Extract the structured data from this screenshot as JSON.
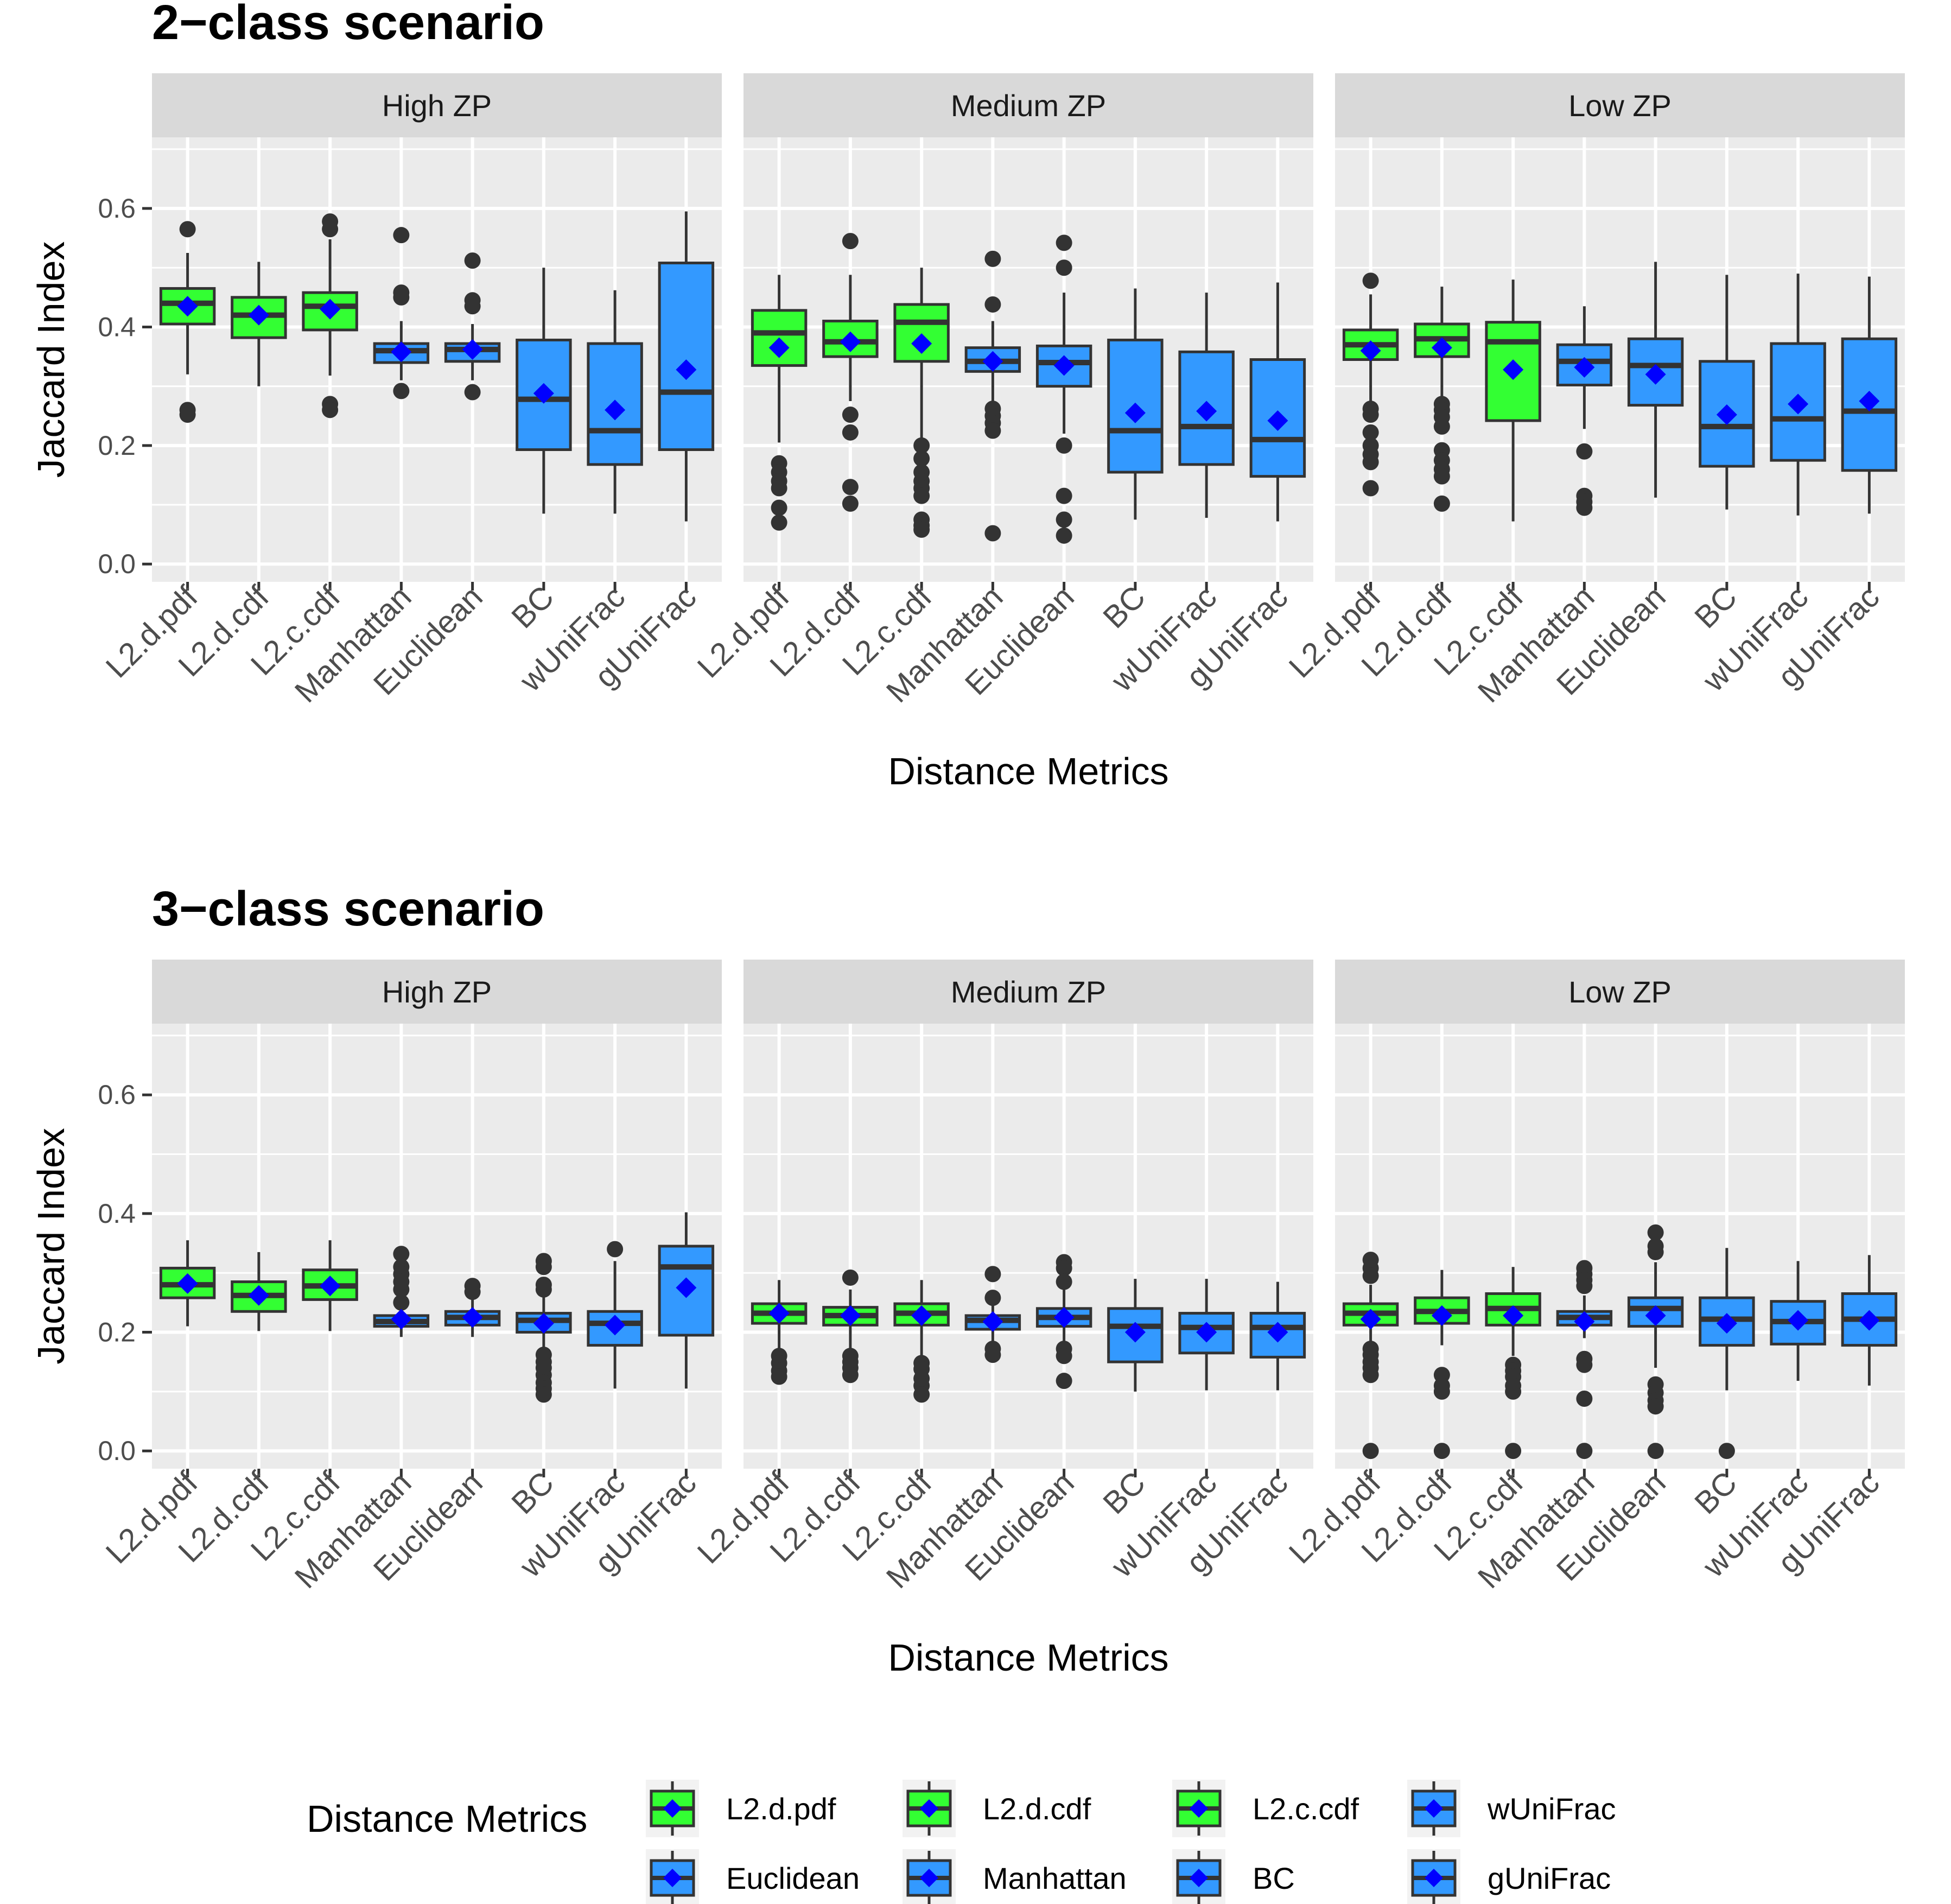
{
  "chart_data": [
    {
      "type": "boxplot",
      "title": "2−class scenario",
      "xlabel": "Distance Metrics",
      "ylabel": "Jaccard Index",
      "ylim": [
        -0.03,
        0.72
      ],
      "yticks": [
        "0.0",
        "0.2",
        "0.4",
        "0.6"
      ],
      "ytick_values": [
        0.0,
        0.2,
        0.4,
        0.6
      ],
      "categories": [
        "L2.d.pdf",
        "L2.d.cdf",
        "L2.c.cdf",
        "Manhattan",
        "Euclidean",
        "BC",
        "wUniFrac",
        "gUniFrac"
      ],
      "fill_colors": [
        "#33ff33",
        "#33ff33",
        "#33ff33",
        "#3399ff",
        "#3399ff",
        "#3399ff",
        "#3399ff",
        "#3399ff"
      ],
      "mean_marker_color": "#0000ff",
      "panels": [
        {
          "name": "High ZP",
          "boxes": [
            {
              "lo": 0.32,
              "q1": 0.405,
              "med": 0.44,
              "q3": 0.465,
              "hi": 0.525,
              "mean": 0.435,
              "out": [
                0.565,
                0.26,
                0.252
              ]
            },
            {
              "lo": 0.3,
              "q1": 0.382,
              "med": 0.42,
              "q3": 0.45,
              "hi": 0.51,
              "mean": 0.42,
              "out": []
            },
            {
              "lo": 0.318,
              "q1": 0.395,
              "med": 0.435,
              "q3": 0.458,
              "hi": 0.548,
              "mean": 0.43,
              "out": [
                0.578,
                0.565,
                0.27,
                0.26
              ]
            },
            {
              "lo": 0.31,
              "q1": 0.34,
              "med": 0.36,
              "q3": 0.372,
              "hi": 0.41,
              "mean": 0.358,
              "out": [
                0.555,
                0.458,
                0.45,
                0.292
              ]
            },
            {
              "lo": 0.31,
              "q1": 0.342,
              "med": 0.362,
              "q3": 0.372,
              "hi": 0.405,
              "mean": 0.362,
              "out": [
                0.512,
                0.445,
                0.435,
                0.29
              ]
            },
            {
              "lo": 0.085,
              "q1": 0.193,
              "med": 0.278,
              "q3": 0.378,
              "hi": 0.5,
              "mean": 0.288,
              "out": []
            },
            {
              "lo": 0.085,
              "q1": 0.168,
              "med": 0.225,
              "q3": 0.372,
              "hi": 0.462,
              "mean": 0.26,
              "out": []
            },
            {
              "lo": 0.072,
              "q1": 0.193,
              "med": 0.29,
              "q3": 0.508,
              "hi": 0.595,
              "mean": 0.328,
              "out": []
            }
          ]
        },
        {
          "name": "Medium ZP",
          "boxes": [
            {
              "lo": 0.205,
              "q1": 0.335,
              "med": 0.39,
              "q3": 0.428,
              "hi": 0.488,
              "mean": 0.365,
              "out": [
                0.17,
                0.155,
                0.14,
                0.128,
                0.095,
                0.07
              ]
            },
            {
              "lo": 0.275,
              "q1": 0.35,
              "med": 0.375,
              "q3": 0.41,
              "hi": 0.488,
              "mean": 0.375,
              "out": [
                0.545,
                0.252,
                0.222,
                0.13,
                0.102
              ]
            },
            {
              "lo": 0.205,
              "q1": 0.342,
              "med": 0.408,
              "q3": 0.438,
              "hi": 0.5,
              "mean": 0.372,
              "out": [
                0.2,
                0.178,
                0.155,
                0.14,
                0.128,
                0.115,
                0.075,
                0.065,
                0.058
              ]
            },
            {
              "lo": 0.275,
              "q1": 0.325,
              "med": 0.342,
              "q3": 0.365,
              "hi": 0.41,
              "mean": 0.342,
              "out": [
                0.515,
                0.438,
                0.262,
                0.25,
                0.238,
                0.225,
                0.052
              ]
            },
            {
              "lo": 0.22,
              "q1": 0.3,
              "med": 0.34,
              "q3": 0.368,
              "hi": 0.458,
              "mean": 0.335,
              "out": [
                0.542,
                0.5,
                0.2,
                0.115,
                0.075,
                0.048
              ]
            },
            {
              "lo": 0.075,
              "q1": 0.155,
              "med": 0.225,
              "q3": 0.378,
              "hi": 0.465,
              "mean": 0.255,
              "out": []
            },
            {
              "lo": 0.078,
              "q1": 0.168,
              "med": 0.232,
              "q3": 0.358,
              "hi": 0.458,
              "mean": 0.258,
              "out": []
            },
            {
              "lo": 0.072,
              "q1": 0.148,
              "med": 0.21,
              "q3": 0.345,
              "hi": 0.475,
              "mean": 0.242,
              "out": []
            }
          ]
        },
        {
          "name": "Low ZP",
          "boxes": [
            {
              "lo": 0.27,
              "q1": 0.345,
              "med": 0.37,
              "q3": 0.395,
              "hi": 0.455,
              "mean": 0.36,
              "out": [
                0.478,
                0.262,
                0.252,
                0.222,
                0.2,
                0.185,
                0.172,
                0.128
              ]
            },
            {
              "lo": 0.28,
              "q1": 0.35,
              "med": 0.38,
              "q3": 0.405,
              "hi": 0.468,
              "mean": 0.365,
              "out": [
                0.27,
                0.26,
                0.248,
                0.232,
                0.192,
                0.175,
                0.16,
                0.148,
                0.102
              ]
            },
            {
              "lo": 0.072,
              "q1": 0.242,
              "med": 0.375,
              "q3": 0.408,
              "hi": 0.48,
              "mean": 0.328,
              "out": []
            },
            {
              "lo": 0.228,
              "q1": 0.302,
              "med": 0.342,
              "q3": 0.37,
              "hi": 0.435,
              "mean": 0.332,
              "out": [
                0.19,
                0.115,
                0.105,
                0.095
              ]
            },
            {
              "lo": 0.112,
              "q1": 0.268,
              "med": 0.335,
              "q3": 0.38,
              "hi": 0.51,
              "mean": 0.32,
              "out": []
            },
            {
              "lo": 0.092,
              "q1": 0.165,
              "med": 0.232,
              "q3": 0.342,
              "hi": 0.488,
              "mean": 0.252,
              "out": []
            },
            {
              "lo": 0.082,
              "q1": 0.175,
              "med": 0.245,
              "q3": 0.372,
              "hi": 0.49,
              "mean": 0.27,
              "out": []
            },
            {
              "lo": 0.085,
              "q1": 0.158,
              "med": 0.258,
              "q3": 0.38,
              "hi": 0.485,
              "mean": 0.275,
              "out": []
            }
          ]
        }
      ]
    },
    {
      "type": "boxplot",
      "title": "3−class scenario",
      "xlabel": "Distance Metrics",
      "ylabel": "Jaccard Index",
      "ylim": [
        -0.03,
        0.72
      ],
      "yticks": [
        "0.0",
        "0.2",
        "0.4",
        "0.6"
      ],
      "ytick_values": [
        0.0,
        0.2,
        0.4,
        0.6
      ],
      "categories": [
        "L2.d.pdf",
        "L2.d.cdf",
        "L2.c.cdf",
        "Manhattan",
        "Euclidean",
        "BC",
        "wUniFrac",
        "gUniFrac"
      ],
      "fill_colors": [
        "#33ff33",
        "#33ff33",
        "#33ff33",
        "#3399ff",
        "#3399ff",
        "#3399ff",
        "#3399ff",
        "#3399ff"
      ],
      "mean_marker_color": "#0000ff",
      "panels": [
        {
          "name": "High ZP",
          "boxes": [
            {
              "lo": 0.21,
              "q1": 0.258,
              "med": 0.28,
              "q3": 0.308,
              "hi": 0.355,
              "mean": 0.282,
              "out": []
            },
            {
              "lo": 0.202,
              "q1": 0.235,
              "med": 0.262,
              "q3": 0.285,
              "hi": 0.335,
              "mean": 0.262,
              "out": []
            },
            {
              "lo": 0.202,
              "q1": 0.255,
              "med": 0.278,
              "q3": 0.305,
              "hi": 0.355,
              "mean": 0.278,
              "out": []
            },
            {
              "lo": 0.192,
              "q1": 0.21,
              "med": 0.218,
              "q3": 0.228,
              "hi": 0.252,
              "mean": 0.222,
              "out": [
                0.332,
                0.31,
                0.298,
                0.285,
                0.272,
                0.25
              ]
            },
            {
              "lo": 0.192,
              "q1": 0.212,
              "med": 0.225,
              "q3": 0.235,
              "hi": 0.26,
              "mean": 0.225,
              "out": [
                0.278,
                0.268
              ]
            },
            {
              "lo": 0.165,
              "q1": 0.2,
              "med": 0.22,
              "q3": 0.232,
              "hi": 0.262,
              "mean": 0.215,
              "out": [
                0.32,
                0.31,
                0.28,
                0.272,
                0.162,
                0.15,
                0.14,
                0.128,
                0.115,
                0.105,
                0.095
              ]
            },
            {
              "lo": 0.105,
              "q1": 0.178,
              "med": 0.215,
              "q3": 0.235,
              "hi": 0.32,
              "mean": 0.212,
              "out": [
                0.34
              ]
            },
            {
              "lo": 0.105,
              "q1": 0.195,
              "med": 0.31,
              "q3": 0.345,
              "hi": 0.402,
              "mean": 0.275,
              "out": []
            }
          ]
        },
        {
          "name": "Medium ZP",
          "boxes": [
            {
              "lo": 0.17,
              "q1": 0.215,
              "med": 0.232,
              "q3": 0.248,
              "hi": 0.288,
              "mean": 0.232,
              "out": [
                0.16,
                0.148,
                0.135,
                0.125
              ]
            },
            {
              "lo": 0.168,
              "q1": 0.212,
              "med": 0.228,
              "q3": 0.242,
              "hi": 0.272,
              "mean": 0.228,
              "out": [
                0.292,
                0.16,
                0.15,
                0.14,
                0.128
              ]
            },
            {
              "lo": 0.158,
              "q1": 0.212,
              "med": 0.232,
              "q3": 0.248,
              "hi": 0.288,
              "mean": 0.228,
              "out": [
                0.148,
                0.138,
                0.122,
                0.11,
                0.095
              ]
            },
            {
              "lo": 0.185,
              "q1": 0.205,
              "med": 0.22,
              "q3": 0.228,
              "hi": 0.25,
              "mean": 0.218,
              "out": [
                0.298,
                0.258,
                0.172,
                0.162
              ]
            },
            {
              "lo": 0.178,
              "q1": 0.21,
              "med": 0.225,
              "q3": 0.24,
              "hi": 0.28,
              "mean": 0.225,
              "out": [
                0.318,
                0.308,
                0.285,
                0.172,
                0.16,
                0.118
              ]
            },
            {
              "lo": 0.1,
              "q1": 0.15,
              "med": 0.21,
              "q3": 0.24,
              "hi": 0.29,
              "mean": 0.2,
              "out": []
            },
            {
              "lo": 0.102,
              "q1": 0.165,
              "med": 0.208,
              "q3": 0.232,
              "hi": 0.29,
              "mean": 0.2,
              "out": []
            },
            {
              "lo": 0.102,
              "q1": 0.158,
              "med": 0.208,
              "q3": 0.232,
              "hi": 0.285,
              "mean": 0.2,
              "out": []
            }
          ]
        },
        {
          "name": "Low ZP",
          "boxes": [
            {
              "lo": 0.182,
              "q1": 0.212,
              "med": 0.232,
              "q3": 0.248,
              "hi": 0.28,
              "mean": 0.222,
              "out": [
                0.322,
                0.308,
                0.295,
                0.172,
                0.162,
                0.15,
                0.14,
                0.128,
                0.0
              ]
            },
            {
              "lo": 0.178,
              "q1": 0.215,
              "med": 0.235,
              "q3": 0.258,
              "hi": 0.305,
              "mean": 0.228,
              "out": [
                0.128,
                0.11,
                0.1,
                0.0
              ]
            },
            {
              "lo": 0.16,
              "q1": 0.212,
              "med": 0.24,
              "q3": 0.265,
              "hi": 0.31,
              "mean": 0.228,
              "out": [
                0.145,
                0.135,
                0.125,
                0.11,
                0.1,
                0.0
              ]
            },
            {
              "lo": 0.19,
              "q1": 0.212,
              "med": 0.225,
              "q3": 0.235,
              "hi": 0.262,
              "mean": 0.218,
              "out": [
                0.308,
                0.298,
                0.288,
                0.278,
                0.155,
                0.145,
                0.088,
                0.0
              ]
            },
            {
              "lo": 0.14,
              "q1": 0.21,
              "med": 0.24,
              "q3": 0.258,
              "hi": 0.318,
              "mean": 0.228,
              "out": [
                0.368,
                0.345,
                0.335,
                0.112,
                0.098,
                0.085,
                0.075,
                0.0
              ]
            },
            {
              "lo": 0.102,
              "q1": 0.178,
              "med": 0.222,
              "q3": 0.258,
              "hi": 0.342,
              "mean": 0.215,
              "out": [
                0.0
              ]
            },
            {
              "lo": 0.118,
              "q1": 0.18,
              "med": 0.218,
              "q3": 0.252,
              "hi": 0.32,
              "mean": 0.22,
              "out": []
            },
            {
              "lo": 0.11,
              "q1": 0.178,
              "med": 0.222,
              "q3": 0.265,
              "hi": 0.33,
              "mean": 0.22,
              "out": []
            }
          ]
        }
      ]
    }
  ],
  "legend": {
    "title": "Distance Metrics",
    "items": [
      {
        "label": "L2.d.pdf",
        "fill": "#33ff33"
      },
      {
        "label": "Euclidean",
        "fill": "#3399ff"
      },
      {
        "label": "L2.d.cdf",
        "fill": "#33ff33"
      },
      {
        "label": "Manhattan",
        "fill": "#3399ff"
      },
      {
        "label": "L2.c.cdf",
        "fill": "#33ff33"
      },
      {
        "label": "BC",
        "fill": "#3399ff"
      },
      {
        "label": "wUniFrac",
        "fill": "#3399ff"
      },
      {
        "label": "gUniFrac",
        "fill": "#3399ff"
      }
    ]
  }
}
